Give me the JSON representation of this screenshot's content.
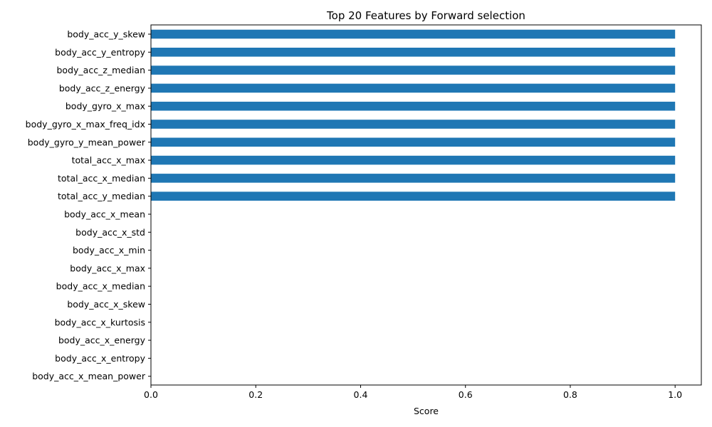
{
  "chart_data": {
    "type": "bar",
    "orientation": "horizontal",
    "title": "Top 20 Features by Forward selection",
    "xlabel": "Score",
    "ylabel": "",
    "xlim": [
      0,
      1.05
    ],
    "x_ticks": [
      "0.0",
      "0.2",
      "0.4",
      "0.6",
      "0.8",
      "1.0"
    ],
    "grid": false,
    "color": "#1f77b4",
    "categories": [
      "body_acc_y_skew",
      "body_acc_y_entropy",
      "body_acc_z_median",
      "body_acc_z_energy",
      "body_gyro_x_max",
      "body_gyro_x_max_freq_idx",
      "body_gyro_y_mean_power",
      "total_acc_x_max",
      "total_acc_x_median",
      "total_acc_y_median",
      "body_acc_x_mean",
      "body_acc_x_std",
      "body_acc_x_min",
      "body_acc_x_max",
      "body_acc_x_median",
      "body_acc_x_skew",
      "body_acc_x_kurtosis",
      "body_acc_x_energy",
      "body_acc_x_entropy",
      "body_acc_x_mean_power"
    ],
    "values": [
      1,
      1,
      1,
      1,
      1,
      1,
      1,
      1,
      1,
      1,
      0,
      0,
      0,
      0,
      0,
      0,
      0,
      0,
      0,
      0
    ]
  }
}
